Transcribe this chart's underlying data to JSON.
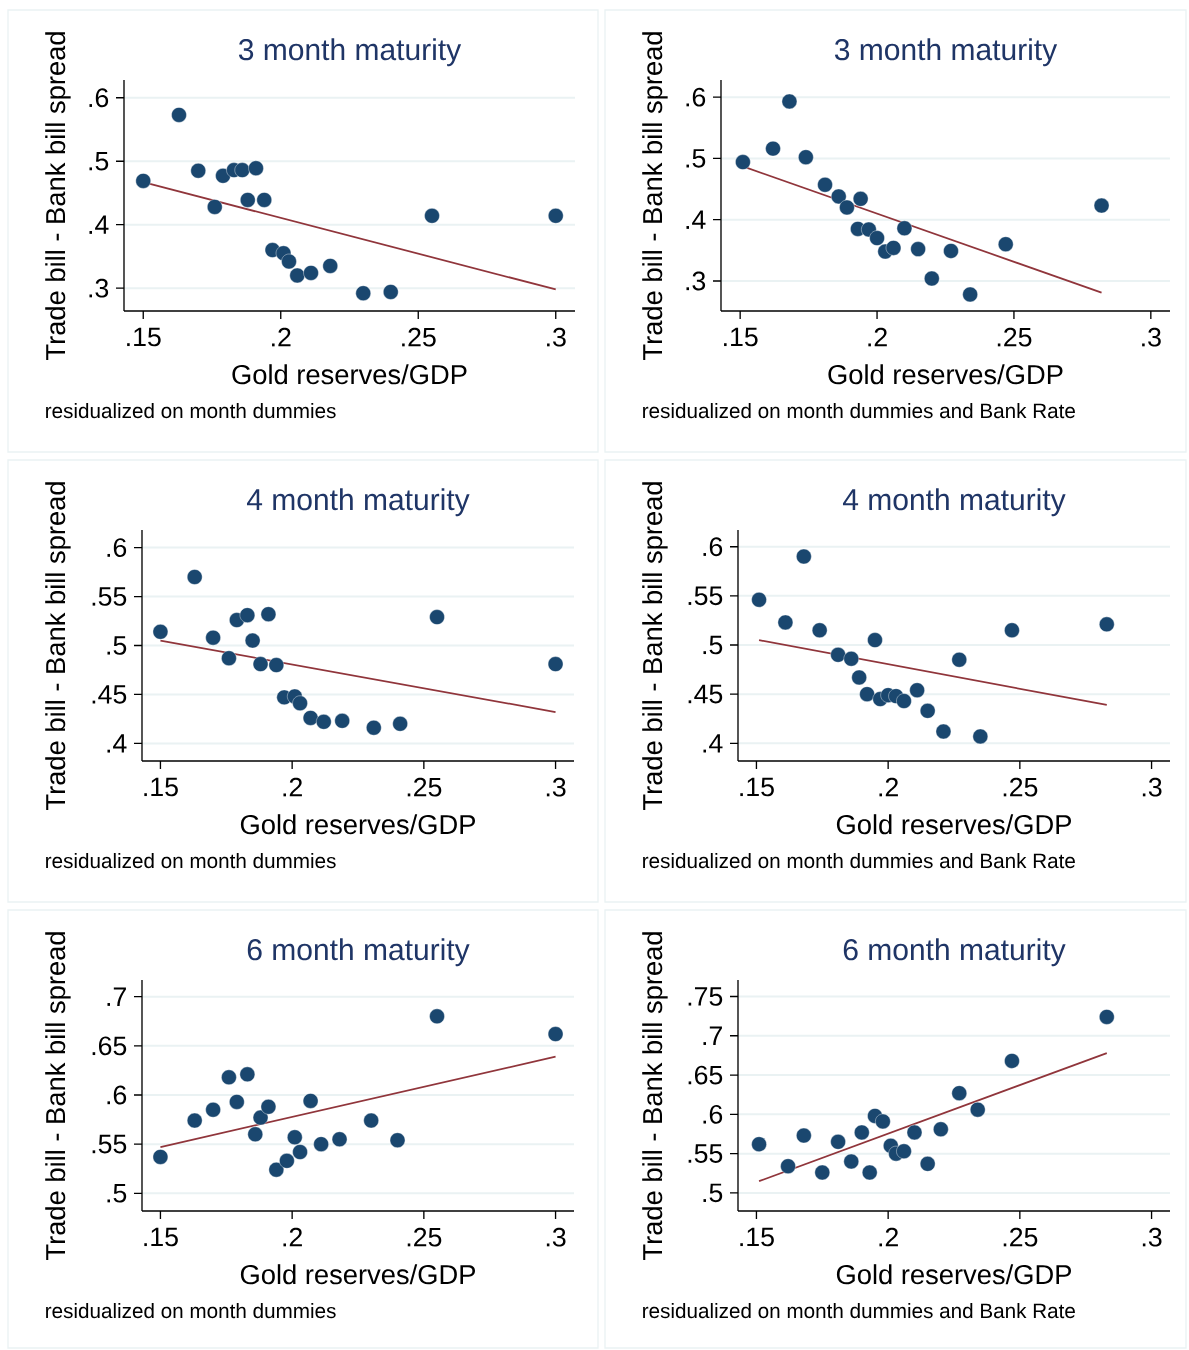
{
  "chart_data": [
    {
      "type": "scatter",
      "title": "3 month maturity",
      "xlabel": "Gold reserves/GDP",
      "ylabel": "Trade bill - Bank bill spread",
      "annotations": [
        "residualized on month dummies"
      ],
      "grid": "y",
      "xlim": [
        0.143,
        0.307
      ],
      "ylim": [
        0.264,
        0.628
      ],
      "xticks": [
        {
          "value": 0.15,
          "label": ".15"
        },
        {
          "value": 0.2,
          "label": ".2"
        },
        {
          "value": 0.25,
          "label": ".25"
        },
        {
          "value": 0.3,
          "label": ".3"
        }
      ],
      "yticks": [
        {
          "value": 0.3,
          "label": ".3"
        },
        {
          "value": 0.4,
          "label": ".4"
        },
        {
          "value": 0.5,
          "label": ".5"
        },
        {
          "value": 0.6,
          "label": ".6"
        }
      ],
      "series": [
        {
          "type": "scatter",
          "color": "#1a476f",
          "x": [
            0.15,
            0.163,
            0.17,
            0.176,
            0.179,
            0.183,
            0.186,
            0.188,
            0.191,
            0.194,
            0.197,
            0.201,
            0.203,
            0.206,
            0.211,
            0.218,
            0.23,
            0.24,
            0.255,
            0.3
          ],
          "values": [
            0.469,
            0.573,
            0.485,
            0.428,
            0.477,
            0.486,
            0.486,
            0.439,
            0.489,
            0.439,
            0.36,
            0.355,
            0.342,
            0.32,
            0.324,
            0.335,
            0.292,
            0.294,
            0.414,
            0.414
          ]
        },
        {
          "type": "line",
          "color": "#90353b",
          "marker": "none",
          "x": [
            0.15,
            0.3
          ],
          "values": [
            0.467,
            0.298
          ]
        }
      ]
    },
    {
      "type": "scatter",
      "title": "3 month maturity",
      "xlabel": "Gold reserves/GDP",
      "ylabel": "Trade bill - Bank bill spread",
      "annotations": [
        "residualized on month dummies and Bank Rate"
      ],
      "grid": "y",
      "xlim": [
        0.143,
        0.307
      ],
      "ylim": [
        0.251,
        0.628
      ],
      "xticks": [
        {
          "value": 0.15,
          "label": ".15"
        },
        {
          "value": 0.2,
          "label": ".2"
        },
        {
          "value": 0.25,
          "label": ".25"
        },
        {
          "value": 0.3,
          "label": ".3"
        }
      ],
      "yticks": [
        {
          "value": 0.3,
          "label": ".3"
        },
        {
          "value": 0.4,
          "label": ".4"
        },
        {
          "value": 0.5,
          "label": ".5"
        },
        {
          "value": 0.6,
          "label": ".6"
        }
      ],
      "series": [
        {
          "type": "scatter",
          "color": "#1a476f",
          "x": [
            0.151,
            0.162,
            0.168,
            0.174,
            0.181,
            0.186,
            0.189,
            0.194,
            0.193,
            0.197,
            0.2,
            0.203,
            0.206,
            0.21,
            0.215,
            0.22,
            0.227,
            0.234,
            0.247,
            0.282
          ],
          "values": [
            0.494,
            0.516,
            0.593,
            0.502,
            0.457,
            0.438,
            0.42,
            0.434,
            0.385,
            0.384,
            0.37,
            0.348,
            0.354,
            0.386,
            0.352,
            0.304,
            0.349,
            0.278,
            0.36,
            0.423
          ]
        },
        {
          "type": "line",
          "color": "#90353b",
          "marker": "none",
          "x": [
            0.151,
            0.282
          ],
          "values": [
            0.487,
            0.281
          ]
        }
      ]
    },
    {
      "type": "scatter",
      "title": "4 month maturity",
      "xlabel": "Gold reserves/GDP",
      "ylabel": "Trade bill - Bank bill spread",
      "annotations": [
        "residualized on month dummies"
      ],
      "grid": "y",
      "xlim": [
        0.143,
        0.307
      ],
      "ylim": [
        0.382,
        0.618
      ],
      "xticks": [
        {
          "value": 0.15,
          "label": ".15"
        },
        {
          "value": 0.2,
          "label": ".2"
        },
        {
          "value": 0.25,
          "label": ".25"
        },
        {
          "value": 0.3,
          "label": ".3"
        }
      ],
      "yticks": [
        {
          "value": 0.4,
          "label": ".4"
        },
        {
          "value": 0.45,
          "label": ".45"
        },
        {
          "value": 0.5,
          "label": ".5"
        },
        {
          "value": 0.55,
          "label": ".55"
        },
        {
          "value": 0.6,
          "label": ".6"
        }
      ],
      "series": [
        {
          "type": "scatter",
          "color": "#1a476f",
          "x": [
            0.15,
            0.163,
            0.17,
            0.176,
            0.179,
            0.183,
            0.185,
            0.188,
            0.191,
            0.194,
            0.197,
            0.201,
            0.203,
            0.207,
            0.212,
            0.219,
            0.231,
            0.241,
            0.255,
            0.3
          ],
          "values": [
            0.514,
            0.57,
            0.508,
            0.487,
            0.526,
            0.531,
            0.505,
            0.481,
            0.532,
            0.48,
            0.447,
            0.448,
            0.441,
            0.426,
            0.422,
            0.423,
            0.416,
            0.42,
            0.529,
            0.481
          ]
        },
        {
          "type": "line",
          "color": "#90353b",
          "marker": "none",
          "x": [
            0.15,
            0.3
          ],
          "values": [
            0.505,
            0.432
          ]
        }
      ]
    },
    {
      "type": "scatter",
      "title": "4 month maturity",
      "xlabel": "Gold reserves/GDP",
      "ylabel": "Trade bill - Bank bill spread",
      "annotations": [
        "residualized on month dummies and Bank Rate"
      ],
      "grid": "y",
      "xlim": [
        0.143,
        0.307
      ],
      "ylim": [
        0.382,
        0.617
      ],
      "xticks": [
        {
          "value": 0.15,
          "label": ".15"
        },
        {
          "value": 0.2,
          "label": ".2"
        },
        {
          "value": 0.25,
          "label": ".25"
        },
        {
          "value": 0.3,
          "label": ".3"
        }
      ],
      "yticks": [
        {
          "value": 0.4,
          "label": ".4"
        },
        {
          "value": 0.45,
          "label": ".45"
        },
        {
          "value": 0.5,
          "label": ".5"
        },
        {
          "value": 0.55,
          "label": ".55"
        },
        {
          "value": 0.6,
          "label": ".6"
        }
      ],
      "series": [
        {
          "type": "scatter",
          "color": "#1a476f",
          "x": [
            0.151,
            0.161,
            0.168,
            0.174,
            0.181,
            0.186,
            0.189,
            0.192,
            0.195,
            0.197,
            0.2,
            0.203,
            0.206,
            0.211,
            0.215,
            0.221,
            0.227,
            0.235,
            0.247,
            0.283
          ],
          "values": [
            0.546,
            0.523,
            0.59,
            0.515,
            0.49,
            0.486,
            0.467,
            0.45,
            0.505,
            0.445,
            0.449,
            0.448,
            0.443,
            0.454,
            0.433,
            0.412,
            0.485,
            0.407,
            0.515,
            0.521
          ]
        },
        {
          "type": "line",
          "color": "#90353b",
          "marker": "none",
          "x": [
            0.151,
            0.283
          ],
          "values": [
            0.505,
            0.439
          ]
        }
      ]
    },
    {
      "type": "scatter",
      "title": "6 month maturity",
      "xlabel": "Gold reserves/GDP",
      "ylabel": "Trade bill - Bank bill spread",
      "annotations": [
        "residualized on month dummies"
      ],
      "grid": "y",
      "xlim": [
        0.143,
        0.307
      ],
      "ylim": [
        0.482,
        0.717
      ],
      "xticks": [
        {
          "value": 0.15,
          "label": ".15"
        },
        {
          "value": 0.2,
          "label": ".2"
        },
        {
          "value": 0.25,
          "label": ".25"
        },
        {
          "value": 0.3,
          "label": ".3"
        }
      ],
      "yticks": [
        {
          "value": 0.5,
          "label": ".5"
        },
        {
          "value": 0.55,
          "label": ".55"
        },
        {
          "value": 0.6,
          "label": ".6"
        },
        {
          "value": 0.65,
          "label": ".65"
        },
        {
          "value": 0.7,
          "label": ".7"
        }
      ],
      "series": [
        {
          "type": "scatter",
          "color": "#1a476f",
          "x": [
            0.15,
            0.163,
            0.17,
            0.176,
            0.179,
            0.183,
            0.186,
            0.188,
            0.191,
            0.194,
            0.198,
            0.201,
            0.203,
            0.207,
            0.211,
            0.218,
            0.23,
            0.24,
            0.255,
            0.3
          ],
          "values": [
            0.537,
            0.574,
            0.585,
            0.618,
            0.593,
            0.621,
            0.56,
            0.577,
            0.588,
            0.524,
            0.533,
            0.557,
            0.542,
            0.594,
            0.55,
            0.555,
            0.574,
            0.554,
            0.68,
            0.662
          ]
        },
        {
          "type": "line",
          "color": "#90353b",
          "marker": "none",
          "x": [
            0.15,
            0.3
          ],
          "values": [
            0.547,
            0.639
          ]
        }
      ]
    },
    {
      "type": "scatter",
      "title": "6 month maturity",
      "xlabel": "Gold reserves/GDP",
      "ylabel": "Trade bill - Bank bill spread",
      "annotations": [
        "residualized on month dummies and Bank Rate"
      ],
      "grid": "y",
      "xlim": [
        0.143,
        0.307
      ],
      "ylim": [
        0.477,
        0.771
      ],
      "xticks": [
        {
          "value": 0.15,
          "label": ".15"
        },
        {
          "value": 0.2,
          "label": ".2"
        },
        {
          "value": 0.25,
          "label": ".25"
        },
        {
          "value": 0.3,
          "label": ".3"
        }
      ],
      "yticks": [
        {
          "value": 0.5,
          "label": ".5"
        },
        {
          "value": 0.55,
          "label": ".55"
        },
        {
          "value": 0.6,
          "label": ".6"
        },
        {
          "value": 0.65,
          "label": ".65"
        },
        {
          "value": 0.7,
          "label": ".7"
        },
        {
          "value": 0.75,
          "label": ".75"
        }
      ],
      "series": [
        {
          "type": "scatter",
          "color": "#1a476f",
          "x": [
            0.151,
            0.162,
            0.168,
            0.175,
            0.181,
            0.186,
            0.19,
            0.193,
            0.195,
            0.198,
            0.201,
            0.203,
            0.206,
            0.21,
            0.215,
            0.22,
            0.227,
            0.234,
            0.247,
            0.283
          ],
          "values": [
            0.562,
            0.534,
            0.573,
            0.526,
            0.565,
            0.54,
            0.577,
            0.526,
            0.598,
            0.591,
            0.56,
            0.55,
            0.553,
            0.577,
            0.537,
            0.581,
            0.627,
            0.606,
            0.668,
            0.724
          ]
        },
        {
          "type": "line",
          "color": "#90353b",
          "marker": "none",
          "x": [
            0.151,
            0.283
          ],
          "values": [
            0.515,
            0.678
          ]
        }
      ]
    }
  ]
}
